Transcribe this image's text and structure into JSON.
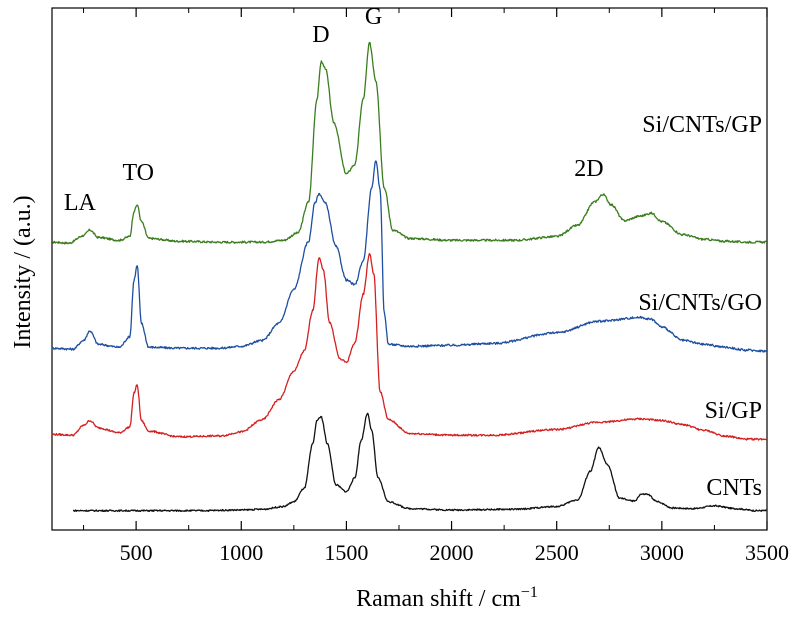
{
  "chart_data": {
    "type": "line",
    "xlabel": "Raman shift / cm",
    "xlabel_superscript": "−1",
    "ylabel": "Intensity / (a.u.)",
    "xlim": [
      100,
      3500
    ],
    "x_ticks": [
      500,
      1000,
      1500,
      2000,
      2500,
      3000,
      3500
    ],
    "x_minor_ticks": [
      250,
      750,
      1250,
      1750,
      2250,
      2750,
      3250
    ],
    "y_ticks_shown": false,
    "grid": false,
    "legend": "none",
    "annotations": [
      {
        "text": "LA",
        "x": 280
      },
      {
        "text": "TO",
        "x": 510
      },
      {
        "text": "D",
        "x": 1360
      },
      {
        "text": "G",
        "x": 1610
      },
      {
        "text": "2D",
        "x": 2720
      }
    ],
    "series": [
      {
        "name": "Si/CNTs/GP",
        "color": "#3a7d1e",
        "x": [
          100,
          180,
          250,
          280,
          320,
          420,
          470,
          490,
          505,
          525,
          560,
          700,
          900,
          1100,
          1200,
          1270,
          1320,
          1360,
          1380,
          1400,
          1440,
          1500,
          1540,
          1580,
          1610,
          1640,
          1680,
          1720,
          1800,
          2000,
          2300,
          2500,
          2600,
          2680,
          2720,
          2760,
          2820,
          2900,
          2950,
          3000,
          3100,
          3200,
          3300,
          3400,
          3500
        ],
        "y": [
          0.2,
          0.1,
          0.9,
          1.5,
          0.7,
          0.4,
          0.8,
          3.5,
          4.2,
          2.4,
          0.6,
          0.3,
          0.2,
          0.2,
          0.4,
          1.2,
          4.5,
          15.5,
          19.5,
          18.8,
          13.0,
          7.5,
          8.5,
          15.5,
          21.5,
          17.5,
          6.0,
          1.5,
          0.6,
          0.4,
          0.4,
          0.8,
          2.0,
          4.5,
          5.3,
          4.2,
          2.5,
          3.0,
          3.3,
          2.4,
          1.0,
          0.5,
          0.3,
          0.2,
          0.2
        ]
      },
      {
        "name": "Si/CNTs/GO",
        "color": "#1e4fa0",
        "x": [
          100,
          200,
          250,
          280,
          320,
          420,
          470,
          490,
          505,
          525,
          560,
          700,
          900,
          1000,
          1100,
          1180,
          1250,
          1320,
          1350,
          1370,
          1400,
          1450,
          1500,
          1540,
          1580,
          1620,
          1640,
          1660,
          1680,
          1700,
          1800,
          2000,
          2200,
          2500,
          2700,
          2900,
          2950,
          3000,
          3100,
          3200,
          3300,
          3400,
          3500
        ],
        "y": [
          0.4,
          0.3,
          1.2,
          2.2,
          0.8,
          0.5,
          1.6,
          7.5,
          9.0,
          3.0,
          0.5,
          0.4,
          0.4,
          0.6,
          1.2,
          3.0,
          6.5,
          11.5,
          15.5,
          16.5,
          15.5,
          11.0,
          7.5,
          7.0,
          9.5,
          17.0,
          20.0,
          17.0,
          4.0,
          0.8,
          0.6,
          0.7,
          0.9,
          2.0,
          3.2,
          3.6,
          3.4,
          2.6,
          1.2,
          0.8,
          0.5,
          0.2,
          0.1
        ]
      },
      {
        "name": "Si/GP",
        "color": "#d42020",
        "x": [
          100,
          200,
          250,
          280,
          320,
          420,
          470,
          490,
          505,
          525,
          560,
          700,
          900,
          1000,
          1100,
          1180,
          1250,
          1300,
          1340,
          1370,
          1390,
          1420,
          1470,
          1500,
          1540,
          1580,
          1610,
          1630,
          1660,
          1700,
          1800,
          2000,
          2200,
          2500,
          2700,
          2900,
          3000,
          3100,
          3200,
          3300,
          3400,
          3500
        ],
        "y": [
          0.7,
          0.6,
          1.8,
          2.4,
          1.5,
          0.9,
          1.6,
          5.8,
          6.8,
          2.4,
          1.1,
          0.4,
          0.5,
          1.0,
          2.5,
          5.0,
          8.5,
          11.0,
          16.0,
          22.5,
          21.0,
          14.5,
          10.0,
          9.6,
          12.0,
          18.0,
          23.0,
          20.5,
          6.0,
          2.5,
          0.8,
          0.6,
          0.6,
          1.3,
          2.2,
          2.6,
          2.4,
          1.9,
          1.2,
          0.5,
          0.1,
          0.1
        ]
      },
      {
        "name": "CNTs",
        "color": "#111111",
        "x": [
          200,
          500,
          800,
          1000,
          1100,
          1200,
          1250,
          1300,
          1340,
          1360,
          1380,
          1410,
          1450,
          1500,
          1540,
          1570,
          1600,
          1620,
          1650,
          1700,
          1800,
          2000,
          2300,
          2500,
          2600,
          2660,
          2700,
          2740,
          2800,
          2870,
          2900,
          2930,
          2980,
          3050,
          3150,
          3250,
          3350,
          3450,
          3500
        ],
        "y": [
          0.2,
          0.2,
          0.2,
          0.3,
          0.4,
          0.8,
          1.5,
          3.5,
          10.0,
          13.5,
          14.0,
          10.0,
          4.0,
          3.0,
          5.0,
          10.5,
          14.5,
          12.0,
          5.0,
          1.5,
          0.5,
          0.3,
          0.4,
          0.8,
          1.8,
          6.0,
          9.5,
          7.0,
          2.0,
          1.6,
          2.6,
          2.6,
          1.5,
          0.6,
          0.5,
          0.9,
          0.5,
          0.2,
          0.2
        ]
      }
    ]
  }
}
